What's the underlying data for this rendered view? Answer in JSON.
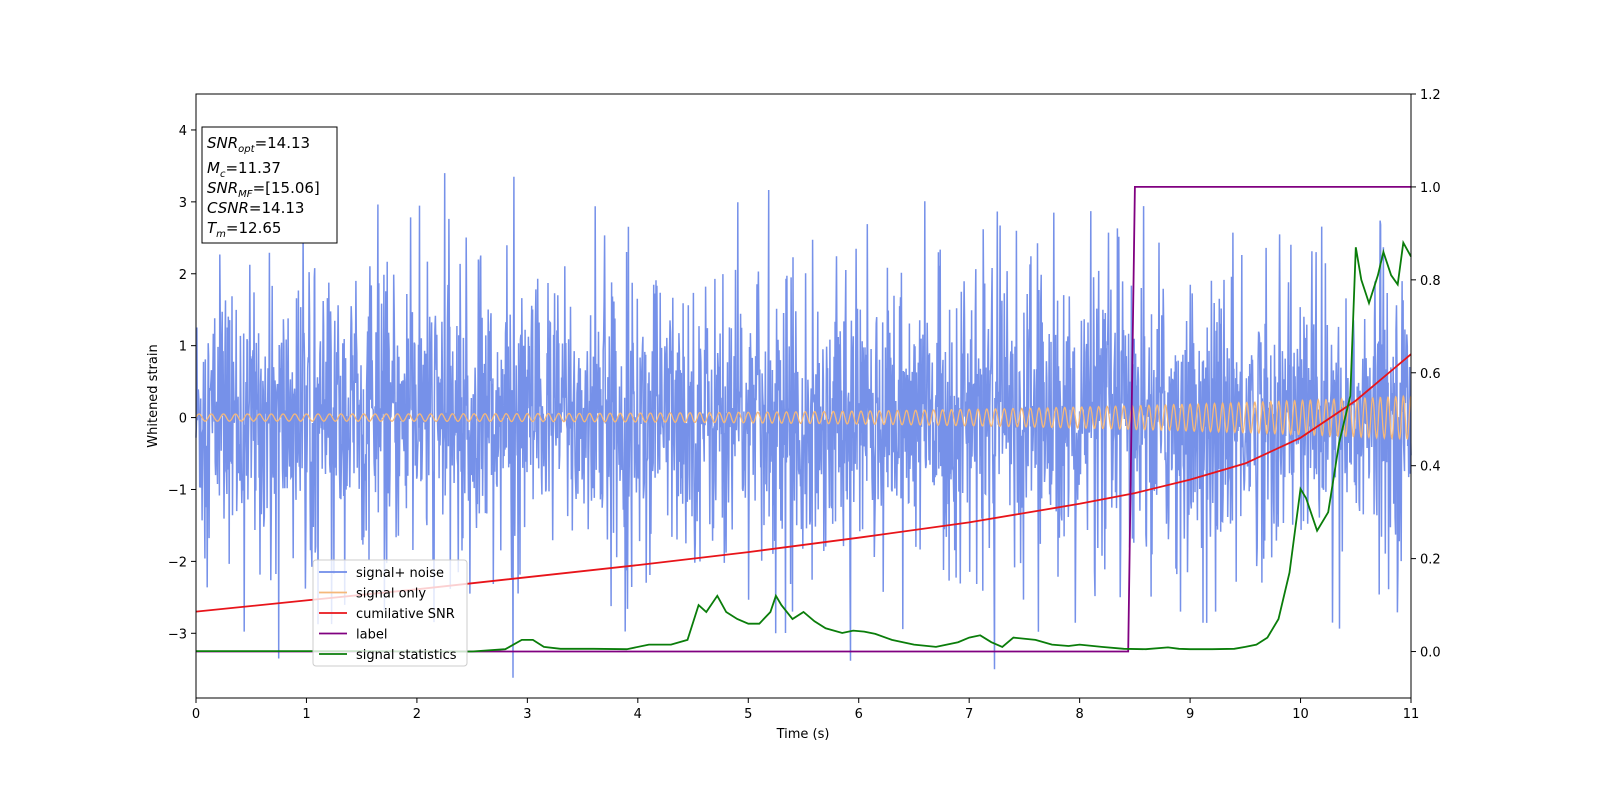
{
  "chart_data": {
    "type": "line",
    "xlabel": "Time (s)",
    "ylabel": "Whitened strain",
    "xlim": [
      0,
      11
    ],
    "ylim_left": [
      -3.9,
      4.5
    ],
    "ylim_right": [
      -0.1,
      1.2
    ],
    "x_ticks": [
      "0",
      "1",
      "2",
      "3",
      "4",
      "5",
      "6",
      "7",
      "8",
      "9",
      "10",
      "11"
    ],
    "y_left_ticks": [
      "−3",
      "−2",
      "−1",
      "0",
      "1",
      "2",
      "3",
      "4"
    ],
    "y_left_tick_values": [
      -3,
      -2,
      -1,
      0,
      1,
      2,
      3,
      4
    ],
    "y_right_ticks": [
      "0.0",
      "0.2",
      "0.4",
      "0.6",
      "0.8",
      "1.0",
      "1.2"
    ],
    "y_right_tick_values": [
      0.0,
      0.2,
      0.4,
      0.6,
      0.8,
      1.0,
      1.2
    ],
    "grid": false,
    "legend_position": "lower-left",
    "series": [
      {
        "name": "signal+ noise",
        "axis": "left",
        "color": "#6f8be8",
        "style": "noise",
        "std": 0.9,
        "peaks": [
          [
            0.75,
            -3.35
          ],
          [
            2.25,
            3.4
          ],
          [
            2.88,
            3.35
          ],
          [
            7.23,
            -3.5
          ],
          [
            5.25,
            -3.0
          ]
        ]
      },
      {
        "name": "signal only",
        "axis": "left",
        "color": "#f5b87a",
        "style": "chirp",
        "amp_start": 0.05,
        "amp_end": 0.3
      },
      {
        "name": "cumilative SNR",
        "axis": "right",
        "color": "#e8141a",
        "x": [
          0,
          1,
          2,
          3,
          4,
          5,
          6,
          7,
          8,
          8.5,
          9,
          9.5,
          10,
          10.5,
          11
        ],
        "y": [
          0.086,
          0.11,
          0.134,
          0.16,
          0.186,
          0.214,
          0.245,
          0.278,
          0.318,
          0.341,
          0.37,
          0.405,
          0.46,
          0.54,
          0.64
        ]
      },
      {
        "name": "label",
        "axis": "right",
        "color": "#800080",
        "x": [
          0,
          8.44,
          8.5,
          11
        ],
        "y": [
          0,
          0,
          1,
          1
        ]
      },
      {
        "name": "signal statistics",
        "axis": "right",
        "color": "#0a7d0a",
        "x": [
          0,
          0.5,
          1,
          1.5,
          2,
          2.5,
          2.8,
          2.95,
          3.05,
          3.15,
          3.3,
          3.6,
          3.9,
          4.1,
          4.3,
          4.45,
          4.55,
          4.62,
          4.72,
          4.8,
          4.9,
          5.0,
          5.1,
          5.2,
          5.25,
          5.3,
          5.4,
          5.5,
          5.6,
          5.7,
          5.85,
          5.95,
          6.05,
          6.15,
          6.3,
          6.5,
          6.7,
          6.9,
          7.0,
          7.1,
          7.2,
          7.3,
          7.4,
          7.6,
          7.75,
          7.9,
          8.0,
          8.2,
          8.4,
          8.6,
          8.8,
          8.9,
          9.0,
          9.2,
          9.4,
          9.5,
          9.6,
          9.7,
          9.8,
          9.9,
          10.0,
          10.05,
          10.15,
          10.25,
          10.35,
          10.45,
          10.5,
          10.55,
          10.62,
          10.7,
          10.75,
          10.82,
          10.88,
          10.93,
          11.0
        ],
        "y": [
          0.001,
          0.001,
          0.001,
          0.001,
          0.0,
          0.0,
          0.005,
          0.025,
          0.025,
          0.01,
          0.006,
          0.006,
          0.005,
          0.015,
          0.015,
          0.025,
          0.1,
          0.085,
          0.12,
          0.085,
          0.07,
          0.06,
          0.06,
          0.085,
          0.12,
          0.1,
          0.07,
          0.085,
          0.065,
          0.05,
          0.04,
          0.045,
          0.043,
          0.038,
          0.025,
          0.015,
          0.01,
          0.02,
          0.03,
          0.035,
          0.02,
          0.01,
          0.03,
          0.025,
          0.015,
          0.012,
          0.015,
          0.01,
          0.006,
          0.005,
          0.009,
          0.006,
          0.005,
          0.005,
          0.006,
          0.01,
          0.015,
          0.03,
          0.07,
          0.17,
          0.35,
          0.33,
          0.26,
          0.3,
          0.45,
          0.55,
          0.87,
          0.8,
          0.75,
          0.81,
          0.86,
          0.81,
          0.79,
          0.88,
          0.85
        ]
      }
    ],
    "annotations": [
      {
        "key": "SNR",
        "sub": "opt",
        "value": "=14.13"
      },
      {
        "key": "M",
        "sub": "c",
        "value": "=11.37"
      },
      {
        "key": "SNR",
        "sub": "MF",
        "value": "=[15.06]"
      },
      {
        "key": "CSNR",
        "sub": "",
        "value": "=14.13"
      },
      {
        "key": "T",
        "sub": "m",
        "value": "=12.65"
      }
    ]
  }
}
